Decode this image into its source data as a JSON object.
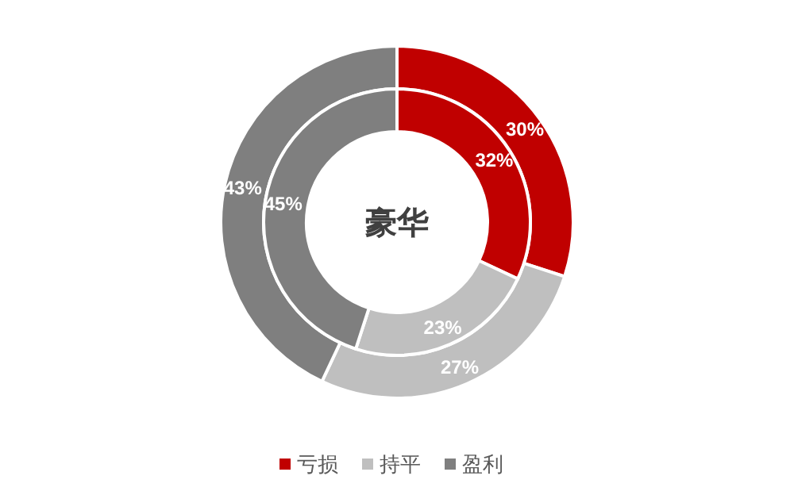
{
  "chart_data": {
    "type": "donut",
    "title": "豪华",
    "categories": [
      "亏损",
      "持平",
      "盈利"
    ],
    "colors": [
      "#c00000",
      "#bfbfbf",
      "#7f7f7f"
    ],
    "series": [
      {
        "values": [
          30,
          27,
          43
        ],
        "value_labels": [
          "30%",
          "27%",
          "43%"
        ]
      },
      {
        "values": [
          32,
          23,
          45
        ],
        "value_labels": [
          "32%",
          "23%",
          "45%"
        ]
      }
    ],
    "legend": "bottom"
  }
}
